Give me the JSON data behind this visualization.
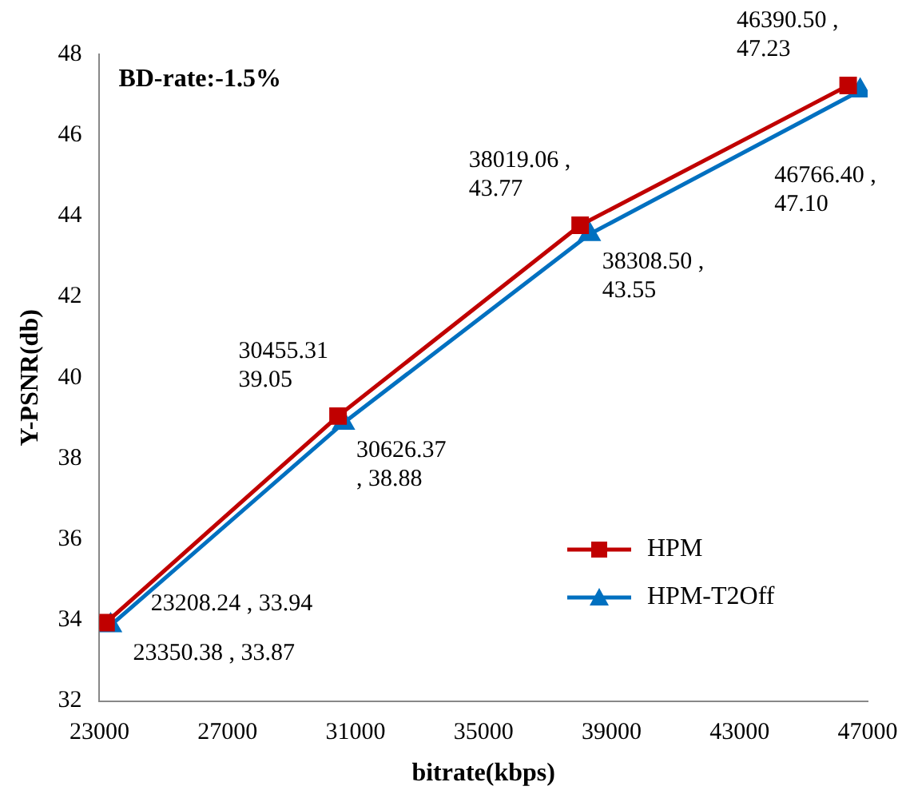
{
  "chart_data": {
    "type": "line",
    "xlabel": "bitrate(kbps)",
    "ylabel": "Y-PSNR(db)",
    "annotations": [
      "BD-rate:-1.5%"
    ],
    "xlim": [
      23000,
      47000
    ],
    "xticks": [
      23000,
      27000,
      31000,
      35000,
      39000,
      43000,
      47000
    ],
    "ylim": [
      32,
      48
    ],
    "yticks": [
      32,
      34,
      36,
      38,
      40,
      42,
      44,
      46,
      48
    ],
    "grid": false,
    "legend": "bottom right",
    "line_style": "solid",
    "series": [
      {
        "name": "HPM",
        "color": "#c00000",
        "marker": "square",
        "x": [
          23208.24,
          30455.31,
          38019.06,
          46390.5
        ],
        "values": [
          33.94,
          39.05,
          43.77,
          47.23
        ],
        "value_labels": [
          "23208.24 ,\n33.94",
          "30455.31\n39.05",
          "38019.06 ,\n43.77",
          "46390.50 ,\n47.23"
        ]
      },
      {
        "name": "HPM-T2Off",
        "color": "#0070c0",
        "marker": "triangle",
        "x": [
          23350.38,
          30626.37,
          38308.5,
          46766.4
        ],
        "values": [
          33.87,
          38.88,
          43.55,
          47.1
        ],
        "value_labels": [
          "23350.38 ,\n33.87",
          "30626.37\n, 38.88",
          "38308.50 ,\n43.55",
          "46766.40 ,\n47.10"
        ]
      }
    ]
  }
}
